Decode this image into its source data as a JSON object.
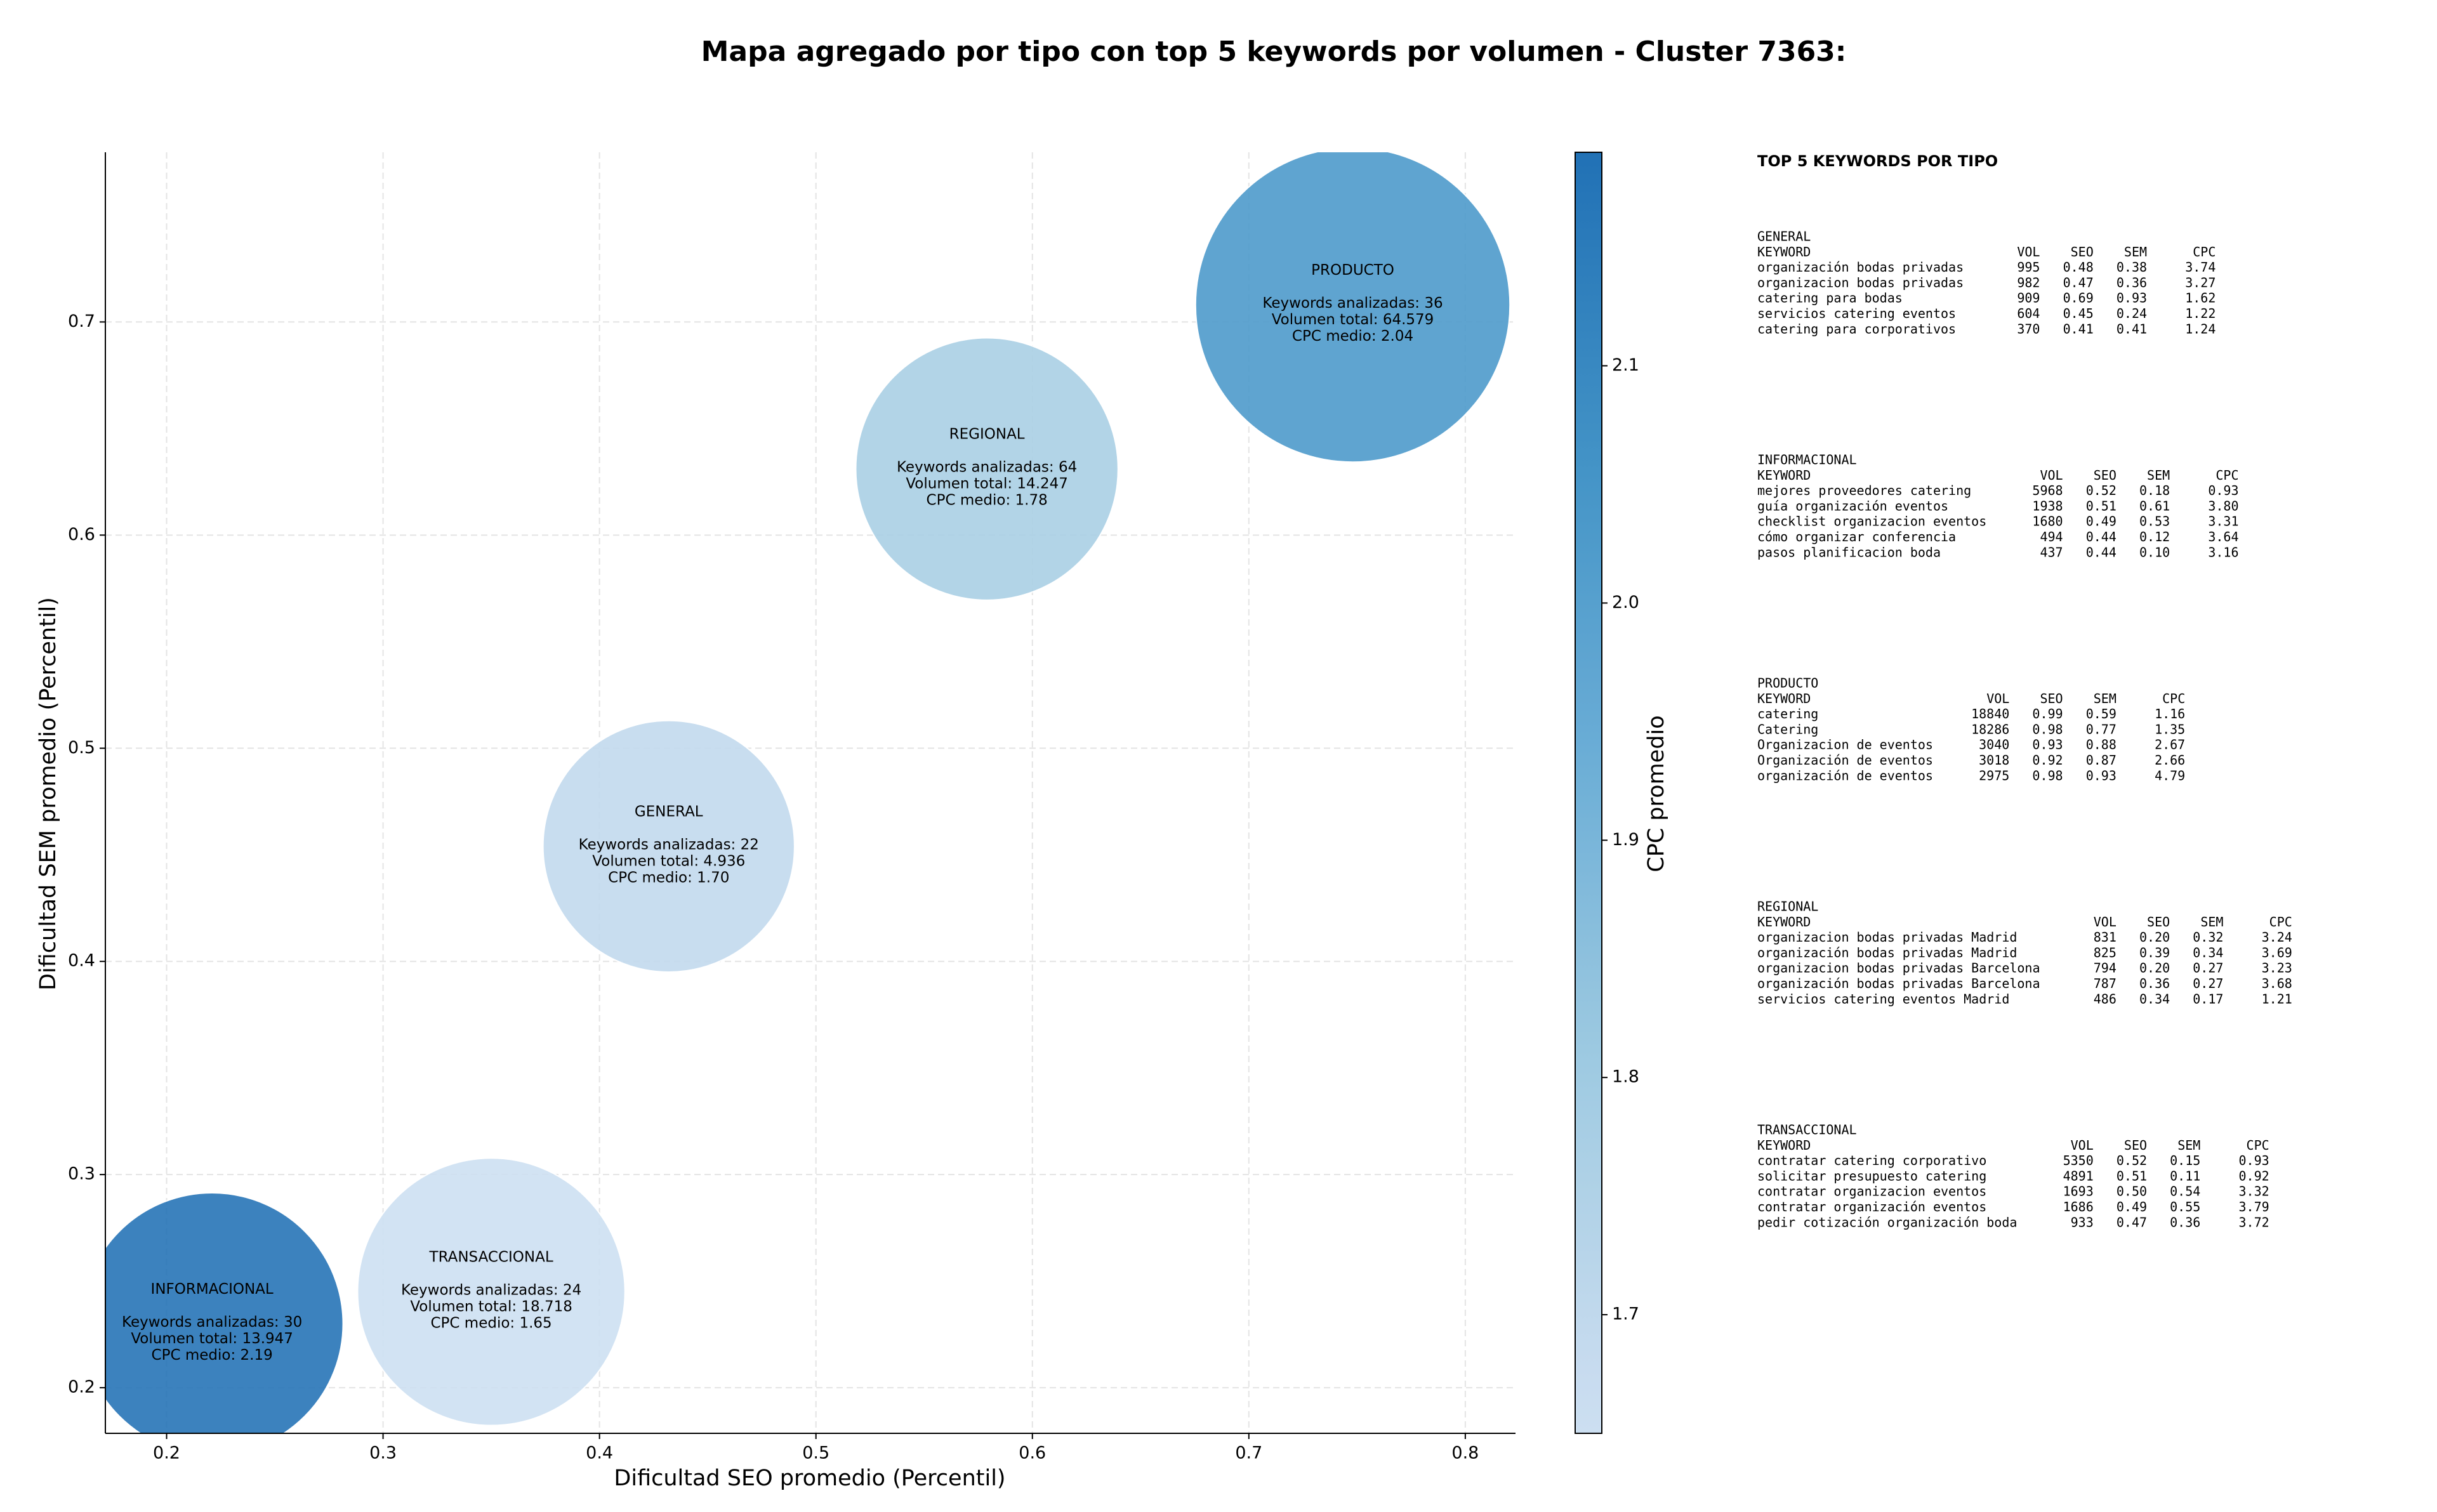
{
  "chart_data": {
    "type": "bubble",
    "title": "Mapa agregado por tipo con top 5 keywords por volumen - Cluster 7363:",
    "x_label": "Dificultad SEO promedio (Percentil)",
    "y_label": "Dificultad SEM promedio (Percentil)",
    "xlim": [
      0.1717,
      0.8232
    ],
    "ylim": [
      0.1786,
      0.7796
    ],
    "xticks": [
      0.2,
      0.3,
      0.4,
      0.5,
      0.6,
      0.7,
      0.8
    ],
    "yticks": [
      0.2,
      0.3,
      0.4,
      0.5,
      0.6,
      0.7
    ],
    "grid": true,
    "colormap": "Blues",
    "colorbar": {
      "label": "CPC promedio",
      "lim": [
        1.65,
        2.19
      ],
      "ticks": [
        1.7,
        1.8,
        1.9,
        {
          "value": 2,
          "label": "2.0"
        },
        2.1
      ]
    },
    "points": [
      {
        "label": "PRODUCTO",
        "x": 0.748,
        "y": 0.708,
        "volume": 64579,
        "cpc": 2.04,
        "lines": [
          "Keywords analizadas: 36",
          "Volumen total: 64.579",
          "CPC medio: 2.04"
        ]
      },
      {
        "label": "REGIONAL",
        "x": 0.579,
        "y": 0.631,
        "volume": 14247,
        "cpc": 1.78,
        "lines": [
          "Keywords analizadas: 64",
          "Volumen total: 14.247",
          "CPC medio: 1.78"
        ]
      },
      {
        "label": "GENERAL",
        "x": 0.432,
        "y": 0.454,
        "volume": 4936,
        "cpc": 1.7,
        "lines": [
          "Keywords analizadas: 22",
          "Volumen total: 4.936",
          "CPC medio: 1.70"
        ]
      },
      {
        "label": "TRANSACCIONAL",
        "x": 0.35,
        "y": 0.245,
        "volume": 18718,
        "cpc": 1.65,
        "lines": [
          "Keywords analizadas: 24",
          "Volumen total: 18.718",
          "CPC medio: 1.65"
        ]
      },
      {
        "label": "INFORMACIONAL",
        "x": 0.221,
        "y": 0.23,
        "volume": 13947,
        "cpc": 2.19,
        "lines": [
          "Keywords analizadas: 30",
          "Volumen total: 13.947",
          "CPC medio: 2.19"
        ]
      }
    ]
  },
  "panel": {
    "title": "TOP 5 KEYWORDS POR TIPO",
    "sections": [
      {
        "title": "GENERAL",
        "columns": [
          "KEYWORD",
          "VOL",
          "SEO",
          "SEM",
          "CPC"
        ],
        "rows": [
          [
            "organización bodas privadas",
            "995",
            "0.48",
            "0.38",
            "3.74"
          ],
          [
            "organizacion bodas privadas",
            "982",
            "0.47",
            "0.36",
            "3.27"
          ],
          [
            "catering para bodas",
            "909",
            "0.69",
            "0.93",
            "1.62"
          ],
          [
            "servicios catering eventos",
            "604",
            "0.45",
            "0.24",
            "1.22"
          ],
          [
            "catering para corporativos",
            "370",
            "0.41",
            "0.41",
            "1.24"
          ]
        ]
      },
      {
        "title": "INFORMACIONAL",
        "columns": [
          "KEYWORD",
          "VOL",
          "SEO",
          "SEM",
          "CPC"
        ],
        "rows": [
          [
            "mejores proveedores catering",
            "5968",
            "0.52",
            "0.18",
            "0.93"
          ],
          [
            "guía organización eventos",
            "1938",
            "0.51",
            "0.61",
            "3.80"
          ],
          [
            "checklist organizacion eventos",
            "1680",
            "0.49",
            "0.53",
            "3.31"
          ],
          [
            "cómo organizar conferencia",
            "494",
            "0.44",
            "0.12",
            "3.64"
          ],
          [
            "pasos planificacion boda",
            "437",
            "0.44",
            "0.10",
            "3.16"
          ]
        ]
      },
      {
        "title": "PRODUCTO",
        "columns": [
          "KEYWORD",
          "VOL",
          "SEO",
          "SEM",
          "CPC"
        ],
        "rows": [
          [
            "catering",
            "18840",
            "0.99",
            "0.59",
            "1.16"
          ],
          [
            "Catering",
            "18286",
            "0.98",
            "0.77",
            "1.35"
          ],
          [
            "Organizacion de eventos",
            "3040",
            "0.93",
            "0.88",
            "2.67"
          ],
          [
            "Organización de eventos",
            "3018",
            "0.92",
            "0.87",
            "2.66"
          ],
          [
            "organización de eventos",
            "2975",
            "0.98",
            "0.93",
            "4.79"
          ]
        ]
      },
      {
        "title": "REGIONAL",
        "columns": [
          "KEYWORD",
          "VOL",
          "SEO",
          "SEM",
          "CPC"
        ],
        "rows": [
          [
            "organizacion bodas privadas Madrid",
            "831",
            "0.20",
            "0.32",
            "3.24"
          ],
          [
            "organización bodas privadas Madrid",
            "825",
            "0.39",
            "0.34",
            "3.69"
          ],
          [
            "organizacion bodas privadas Barcelona",
            "794",
            "0.20",
            "0.27",
            "3.23"
          ],
          [
            "organización bodas privadas Barcelona",
            "787",
            "0.36",
            "0.27",
            "3.68"
          ],
          [
            "servicios catering eventos Madrid",
            "486",
            "0.34",
            "0.17",
            "1.21"
          ]
        ]
      },
      {
        "title": "TRANSACCIONAL",
        "columns": [
          "KEYWORD",
          "VOL",
          "SEO",
          "SEM",
          "CPC"
        ],
        "rows": [
          [
            "contratar catering corporativo",
            "5350",
            "0.52",
            "0.15",
            "0.93"
          ],
          [
            "solicitar presupuesto catering",
            "4891",
            "0.51",
            "0.11",
            "0.92"
          ],
          [
            "contratar organizacion eventos",
            "1693",
            "0.50",
            "0.54",
            "3.32"
          ],
          [
            "contratar organización eventos",
            "1686",
            "0.49",
            "0.55",
            "3.79"
          ],
          [
            "pedir cotización organización boda",
            "933",
            "0.47",
            "0.36",
            "3.72"
          ]
        ]
      }
    ]
  }
}
